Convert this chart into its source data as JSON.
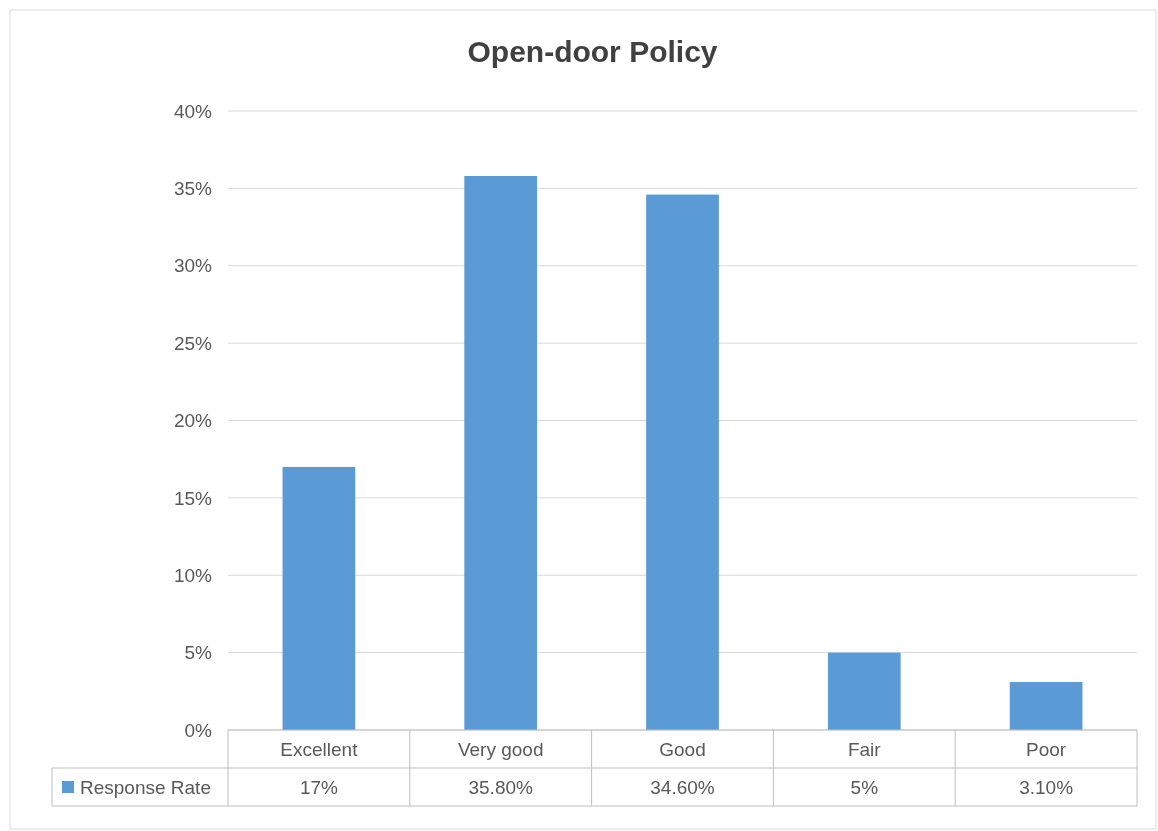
{
  "chart_data": {
    "type": "bar",
    "title": "Open-door Policy",
    "categories": [
      "Excellent",
      "Very good",
      "Good",
      "Fair",
      "Poor"
    ],
    "series": [
      {
        "name": "Response Rate",
        "color": "#5b9bd5",
        "values": [
          17,
          35.8,
          34.6,
          5,
          3.1
        ],
        "value_labels": [
          "17%",
          "35.80%",
          "34.60%",
          "5%",
          "3.10%"
        ]
      }
    ],
    "ylim": [
      0,
      40
    ],
    "yticks": [
      {
        "value": 0,
        "label": "0%"
      },
      {
        "value": 5,
        "label": "5%"
      },
      {
        "value": 10,
        "label": "10%"
      },
      {
        "value": 15,
        "label": "15%"
      },
      {
        "value": 20,
        "label": "20%"
      },
      {
        "value": 25,
        "label": "25%"
      },
      {
        "value": 30,
        "label": "30%"
      },
      {
        "value": 35,
        "label": "35%"
      },
      {
        "value": 40,
        "label": "40%"
      }
    ],
    "grid": "y",
    "legend": "bottom"
  }
}
